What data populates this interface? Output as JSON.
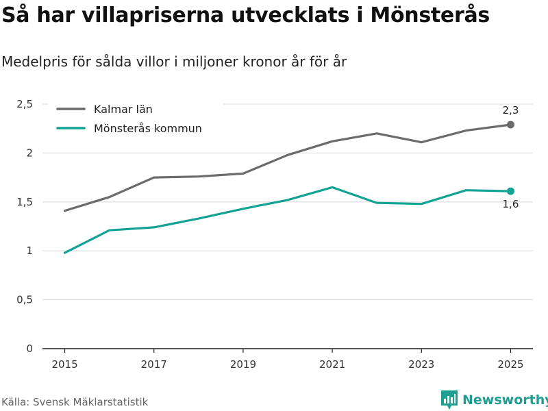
{
  "chart_data": {
    "type": "line",
    "title": "Så har villapriserna utvecklats i Mönsterås",
    "subtitle": "Medelpris för sålda villor i miljoner kronor år för år",
    "x": [
      2015,
      2016,
      2017,
      2018,
      2019,
      2020,
      2021,
      2022,
      2023,
      2024,
      2025
    ],
    "x_ticks": [
      2015,
      2017,
      2019,
      2021,
      2023,
      2025
    ],
    "x_tick_labels": [
      "2015",
      "2017",
      "2019",
      "2021",
      "2023",
      "2025"
    ],
    "xlim": [
      2014.5,
      2025.5
    ],
    "ylim": [
      0,
      2.5
    ],
    "y_ticks": [
      0,
      0.5,
      1,
      1.5,
      2,
      2.5
    ],
    "y_tick_labels": [
      "0",
      "0,5",
      "1",
      "1,5",
      "2",
      "2,5"
    ],
    "grid": true,
    "legend_position": "top-left",
    "series": [
      {
        "name": "Kalmar län",
        "color": "#6b6b6b",
        "values": [
          1.41,
          1.55,
          1.75,
          1.76,
          1.79,
          1.98,
          2.12,
          2.2,
          2.11,
          2.23,
          2.29
        ],
        "end_label": "2,3",
        "end_label_position": "above"
      },
      {
        "name": "Mönsterås kommun",
        "color": "#13a394",
        "values": [
          0.98,
          1.21,
          1.24,
          1.33,
          1.43,
          1.52,
          1.65,
          1.49,
          1.48,
          1.62,
          1.61
        ],
        "end_label": "1,6",
        "end_label_position": "below"
      }
    ],
    "source": "Källa: Svensk Mäklarstatistik"
  },
  "brand": {
    "name": "Newsworthy",
    "color": "#1f9e93"
  }
}
